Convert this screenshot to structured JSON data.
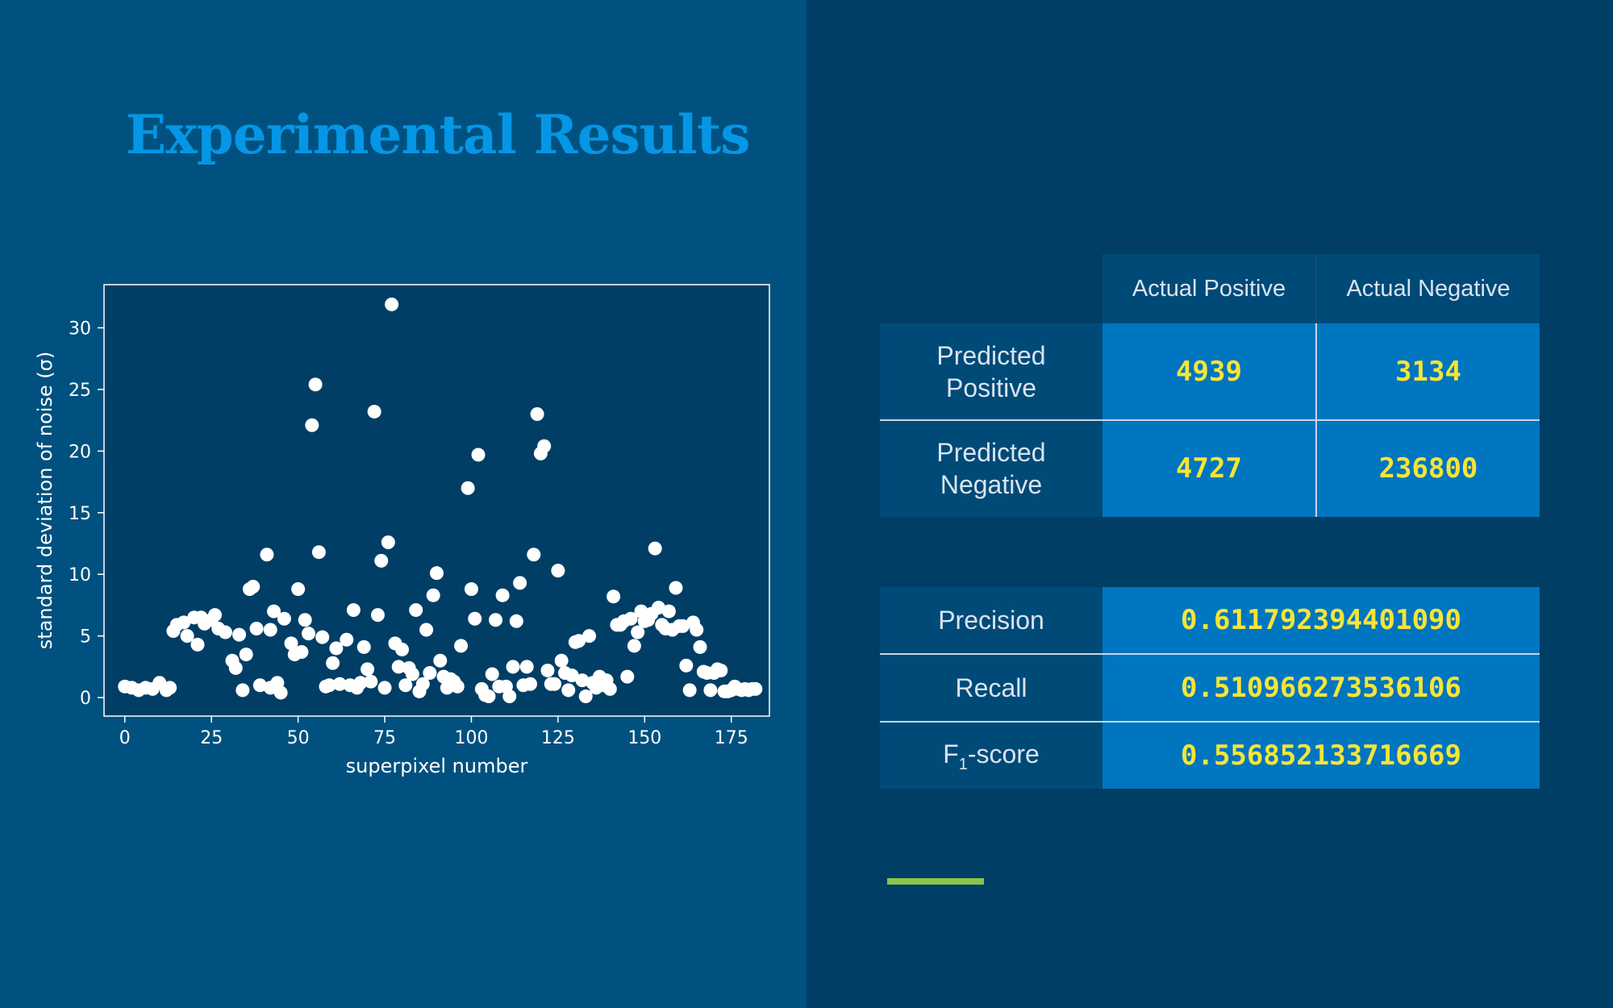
{
  "slide": {
    "title": "Experimental Results"
  },
  "colors": {
    "left_background": "#00517f",
    "right_background": "#003e66",
    "title": "#0596e6",
    "table_header_bg": "#004a78",
    "table_value_bg": "#0075c0",
    "table_value_text": "#f5e536",
    "accent_bar": "#8bc34a"
  },
  "chart_data": {
    "type": "scatter",
    "xlabel": "superpixel number",
    "ylabel": "standard deviation of noise (σ)",
    "xlim": [
      -6,
      186
    ],
    "ylim": [
      -1.5,
      33.5
    ],
    "xticks": [
      0,
      25,
      50,
      75,
      100,
      125,
      150,
      175
    ],
    "yticks": [
      0,
      5,
      10,
      15,
      20,
      25,
      30
    ],
    "marker_color": "#ffffff",
    "grid": false,
    "points": [
      [
        0,
        0.9
      ],
      [
        2,
        0.8
      ],
      [
        4,
        0.6
      ],
      [
        6,
        0.8
      ],
      [
        8,
        0.7
      ],
      [
        10,
        1.2
      ],
      [
        12,
        0.6
      ],
      [
        13,
        0.8
      ],
      [
        14,
        5.4
      ],
      [
        15,
        5.9
      ],
      [
        17,
        6.1
      ],
      [
        18,
        5.0
      ],
      [
        20,
        6.5
      ],
      [
        21,
        4.3
      ],
      [
        22,
        6.5
      ],
      [
        23,
        6.0
      ],
      [
        25,
        6.3
      ],
      [
        26,
        6.7
      ],
      [
        27,
        5.6
      ],
      [
        29,
        5.3
      ],
      [
        31,
        3.0
      ],
      [
        32,
        2.4
      ],
      [
        33,
        5.1
      ],
      [
        34,
        0.6
      ],
      [
        35,
        3.5
      ],
      [
        36,
        8.8
      ],
      [
        37,
        9.0
      ],
      [
        38,
        5.6
      ],
      [
        39,
        1.0
      ],
      [
        41,
        11.6
      ],
      [
        42,
        0.8
      ],
      [
        42,
        5.5
      ],
      [
        43,
        7.0
      ],
      [
        44,
        1.2
      ],
      [
        45,
        0.4
      ],
      [
        46,
        6.4
      ],
      [
        48,
        4.4
      ],
      [
        49,
        3.5
      ],
      [
        50,
        8.8
      ],
      [
        51,
        3.7
      ],
      [
        52,
        6.3
      ],
      [
        53,
        5.2
      ],
      [
        54,
        22.1
      ],
      [
        55,
        25.4
      ],
      [
        56,
        11.8
      ],
      [
        57,
        4.9
      ],
      [
        58,
        0.9
      ],
      [
        59,
        1.0
      ],
      [
        60,
        2.8
      ],
      [
        61,
        4.0
      ],
      [
        62,
        1.1
      ],
      [
        64,
        4.7
      ],
      [
        65,
        1.0
      ],
      [
        66,
        7.1
      ],
      [
        67,
        0.8
      ],
      [
        68,
        1.2
      ],
      [
        69,
        4.1
      ],
      [
        70,
        2.3
      ],
      [
        71,
        1.3
      ],
      [
        72,
        23.2
      ],
      [
        73,
        6.7
      ],
      [
        74,
        11.1
      ],
      [
        75,
        0.8
      ],
      [
        76,
        12.6
      ],
      [
        77,
        31.9
      ],
      [
        78,
        4.4
      ],
      [
        79,
        2.5
      ],
      [
        80,
        3.9
      ],
      [
        81,
        1.0
      ],
      [
        82,
        2.4
      ],
      [
        83,
        1.9
      ],
      [
        84,
        7.1
      ],
      [
        85,
        0.5
      ],
      [
        86,
        1.1
      ],
      [
        87,
        5.5
      ],
      [
        88,
        2.0
      ],
      [
        89,
        8.3
      ],
      [
        90,
        10.1
      ],
      [
        91,
        3.0
      ],
      [
        92,
        1.7
      ],
      [
        93,
        0.8
      ],
      [
        94,
        1.5
      ],
      [
        95,
        1.3
      ],
      [
        96,
        0.9
      ],
      [
        97,
        4.2
      ],
      [
        99,
        17.0
      ],
      [
        100,
        8.8
      ],
      [
        101,
        6.4
      ],
      [
        102,
        19.7
      ],
      [
        103,
        0.7
      ],
      [
        104,
        0.2
      ],
      [
        105,
        0.1
      ],
      [
        106,
        1.9
      ],
      [
        107,
        6.3
      ],
      [
        108,
        0.9
      ],
      [
        109,
        8.3
      ],
      [
        110,
        0.9
      ],
      [
        111,
        0.1
      ],
      [
        112,
        2.5
      ],
      [
        113,
        6.2
      ],
      [
        114,
        9.3
      ],
      [
        115,
        1.0
      ],
      [
        116,
        2.5
      ],
      [
        117,
        1.1
      ],
      [
        118,
        11.6
      ],
      [
        119,
        23.0
      ],
      [
        120,
        19.8
      ],
      [
        121,
        20.4
      ],
      [
        122,
        2.2
      ],
      [
        123,
        1.1
      ],
      [
        124,
        1.1
      ],
      [
        125,
        10.3
      ],
      [
        126,
        3.0
      ],
      [
        127,
        2.0
      ],
      [
        128,
        0.6
      ],
      [
        129,
        1.8
      ],
      [
        130,
        4.5
      ],
      [
        131,
        4.6
      ],
      [
        132,
        1.4
      ],
      [
        133,
        0.1
      ],
      [
        134,
        5.0
      ],
      [
        135,
        1.2
      ],
      [
        136,
        0.8
      ],
      [
        137,
        1.7
      ],
      [
        138,
        1.0
      ],
      [
        139,
        1.4
      ],
      [
        140,
        0.7
      ],
      [
        141,
        8.2
      ],
      [
        142,
        5.9
      ],
      [
        143,
        5.9
      ],
      [
        144,
        6.2
      ],
      [
        145,
        1.7
      ],
      [
        146,
        6.4
      ],
      [
        147,
        4.2
      ],
      [
        148,
        5.3
      ],
      [
        149,
        7.0
      ],
      [
        150,
        6.2
      ],
      [
        151,
        6.3
      ],
      [
        152,
        6.8
      ],
      [
        153,
        12.1
      ],
      [
        154,
        7.3
      ],
      [
        155,
        5.9
      ],
      [
        156,
        5.6
      ],
      [
        157,
        7.0
      ],
      [
        158,
        5.5
      ],
      [
        159,
        8.9
      ],
      [
        160,
        5.8
      ],
      [
        161,
        5.8
      ],
      [
        162,
        2.6
      ],
      [
        163,
        0.6
      ],
      [
        164,
        6.1
      ],
      [
        165,
        5.5
      ],
      [
        166,
        4.1
      ],
      [
        167,
        2.1
      ],
      [
        168,
        2.0
      ],
      [
        169,
        0.6
      ],
      [
        170,
        2.0
      ],
      [
        171,
        2.3
      ],
      [
        172,
        2.2
      ],
      [
        173,
        0.5
      ],
      [
        174,
        0.5
      ],
      [
        175,
        0.6
      ],
      [
        176,
        0.9
      ],
      [
        177,
        0.7
      ],
      [
        178,
        0.6
      ],
      [
        179,
        0.7
      ],
      [
        180,
        0.6
      ],
      [
        181,
        0.7
      ],
      [
        182,
        0.7
      ]
    ]
  },
  "confusion_matrix": {
    "col_headers": [
      "Actual Positive",
      "Actual Negative"
    ],
    "rows": [
      {
        "label": "Predicted Positive",
        "values": [
          "4939",
          "3134"
        ]
      },
      {
        "label": "Predicted Negative",
        "values": [
          "4727",
          "236800"
        ]
      }
    ]
  },
  "metrics": [
    {
      "label_main": "Precision",
      "label_sub": "",
      "label_suffix": "",
      "value": "0.611792394401090"
    },
    {
      "label_main": "Recall",
      "label_sub": "",
      "label_suffix": "",
      "value": "0.510966273536106"
    },
    {
      "label_main": "F",
      "label_sub": "1",
      "label_suffix": "-score",
      "value": "0.556852133716669"
    }
  ]
}
